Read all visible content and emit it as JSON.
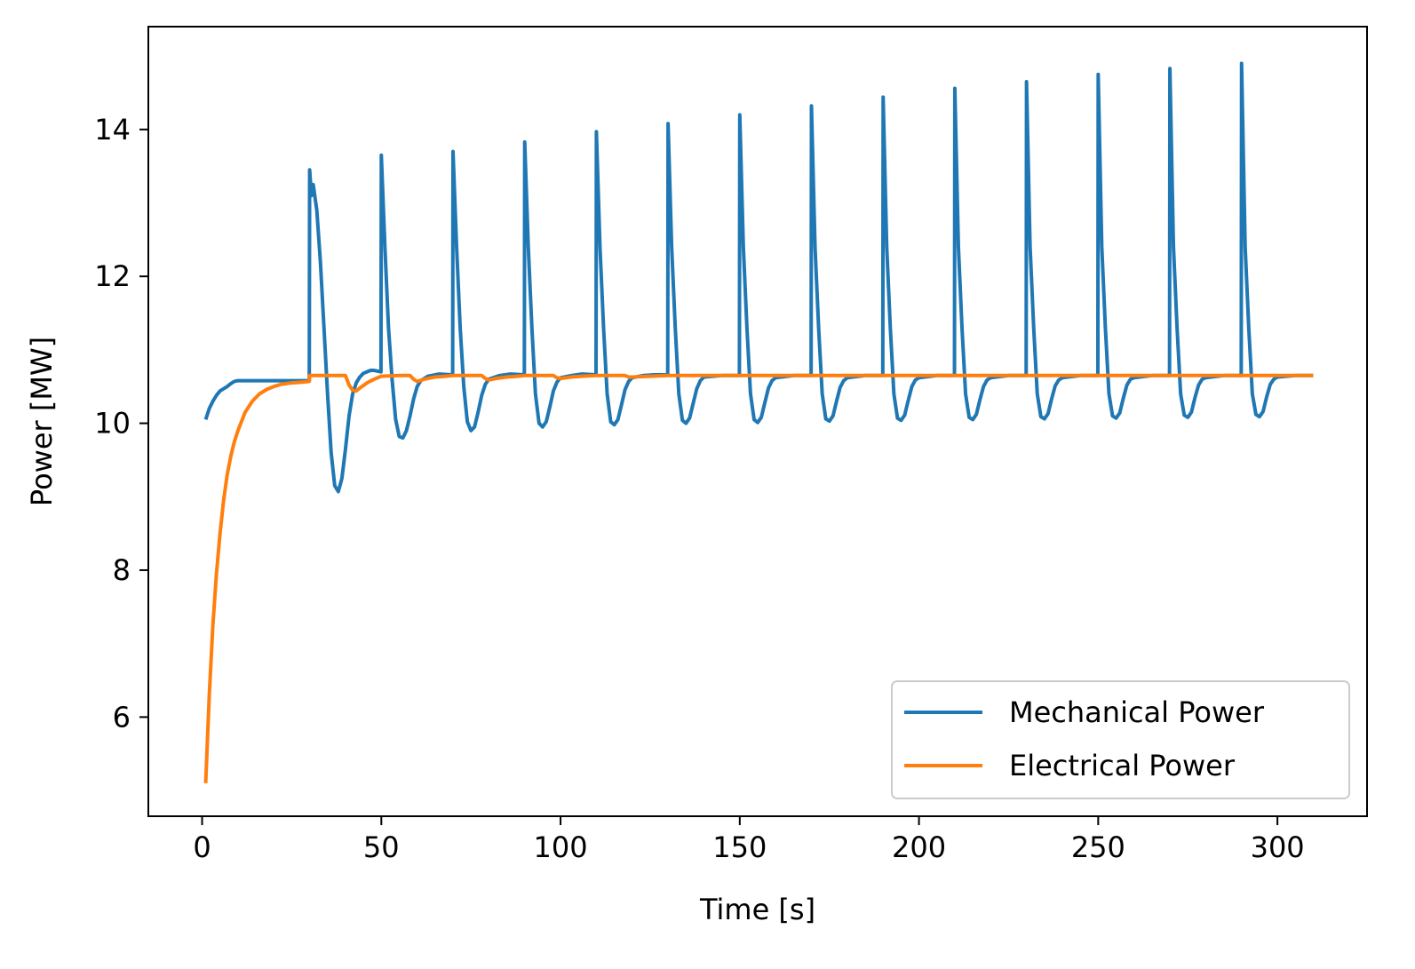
{
  "chart_data": {
    "type": "line",
    "title": "",
    "xlabel": "Time [s]",
    "ylabel": "Power [MW]",
    "xlim": [
      -15,
      325
    ],
    "ylim": [
      4.65,
      15.4
    ],
    "xticks": [
      0,
      50,
      100,
      150,
      200,
      250,
      300
    ],
    "yticks": [
      6,
      8,
      10,
      12,
      14
    ],
    "grid": false,
    "legend_position": "lower right",
    "series": [
      {
        "name": "Mechanical Power",
        "color": "#1f77b4",
        "points": [
          [
            1,
            10.05
          ],
          [
            2,
            10.2
          ],
          [
            3,
            10.3
          ],
          [
            4,
            10.38
          ],
          [
            5,
            10.44
          ],
          [
            6,
            10.47
          ],
          [
            7,
            10.5
          ],
          [
            8,
            10.54
          ],
          [
            9,
            10.57
          ],
          [
            10,
            10.58
          ],
          [
            15,
            10.58
          ],
          [
            20,
            10.58
          ],
          [
            25,
            10.58
          ],
          [
            29.9,
            10.58
          ],
          [
            30,
            13.45
          ],
          [
            30.5,
            13.1
          ],
          [
            31,
            13.25
          ],
          [
            32,
            12.9
          ],
          [
            33,
            12.2
          ],
          [
            34,
            11.3
          ],
          [
            35,
            10.4
          ],
          [
            36,
            9.6
          ],
          [
            37,
            9.15
          ],
          [
            38,
            9.07
          ],
          [
            39,
            9.25
          ],
          [
            40,
            9.65
          ],
          [
            41,
            10.1
          ],
          [
            42,
            10.4
          ],
          [
            43,
            10.55
          ],
          [
            44,
            10.63
          ],
          [
            45,
            10.68
          ],
          [
            47,
            10.72
          ],
          [
            48,
            10.72
          ],
          [
            49.9,
            10.7
          ],
          [
            50,
            13.65
          ],
          [
            51,
            12.4
          ],
          [
            52,
            11.3
          ],
          [
            53,
            10.6
          ],
          [
            54,
            10.05
          ],
          [
            55,
            9.82
          ],
          [
            56,
            9.8
          ],
          [
            57,
            9.9
          ],
          [
            58,
            10.1
          ],
          [
            59,
            10.33
          ],
          [
            60,
            10.5
          ],
          [
            61,
            10.58
          ],
          [
            63,
            10.64
          ],
          [
            66,
            10.67
          ],
          [
            69.9,
            10.66
          ],
          [
            70,
            13.7
          ],
          [
            71,
            12.4
          ],
          [
            72,
            11.3
          ],
          [
            73,
            10.5
          ],
          [
            74,
            10.02
          ],
          [
            75,
            9.9
          ],
          [
            76,
            9.95
          ],
          [
            77,
            10.15
          ],
          [
            78,
            10.38
          ],
          [
            79,
            10.53
          ],
          [
            80,
            10.6
          ],
          [
            83,
            10.65
          ],
          [
            86,
            10.67
          ],
          [
            89.9,
            10.66
          ],
          [
            90,
            13.83
          ],
          [
            91,
            12.4
          ],
          [
            92,
            11.3
          ],
          [
            93,
            10.4
          ],
          [
            94,
            10.0
          ],
          [
            95,
            9.95
          ],
          [
            96,
            10.02
          ],
          [
            97,
            10.22
          ],
          [
            98,
            10.44
          ],
          [
            99,
            10.56
          ],
          [
            100,
            10.62
          ],
          [
            103,
            10.65
          ],
          [
            106,
            10.67
          ],
          [
            109.9,
            10.66
          ],
          [
            110,
            13.97
          ],
          [
            111,
            12.4
          ],
          [
            112,
            11.3
          ],
          [
            113,
            10.4
          ],
          [
            114,
            10.02
          ],
          [
            115,
            9.98
          ],
          [
            116,
            10.05
          ],
          [
            117,
            10.25
          ],
          [
            118,
            10.46
          ],
          [
            119,
            10.57
          ],
          [
            120,
            10.62
          ],
          [
            123,
            10.65
          ],
          [
            126,
            10.66
          ],
          [
            129.9,
            10.66
          ],
          [
            130,
            14.08
          ],
          [
            131,
            12.4
          ],
          [
            132,
            11.3
          ],
          [
            133,
            10.4
          ],
          [
            134,
            10.04
          ],
          [
            135,
            10.0
          ],
          [
            136,
            10.07
          ],
          [
            137,
            10.27
          ],
          [
            138,
            10.47
          ],
          [
            139,
            10.58
          ],
          [
            140,
            10.63
          ],
          [
            145,
            10.65
          ],
          [
            149.9,
            10.65
          ],
          [
            150,
            14.2
          ],
          [
            151,
            12.4
          ],
          [
            152,
            11.3
          ],
          [
            153,
            10.4
          ],
          [
            154,
            10.05
          ],
          [
            155,
            10.01
          ],
          [
            156,
            10.08
          ],
          [
            157,
            10.28
          ],
          [
            158,
            10.48
          ],
          [
            159,
            10.58
          ],
          [
            160,
            10.62
          ],
          [
            165,
            10.65
          ],
          [
            169.9,
            10.65
          ],
          [
            170,
            14.32
          ],
          [
            171,
            12.4
          ],
          [
            172,
            11.3
          ],
          [
            173,
            10.4
          ],
          [
            174,
            10.06
          ],
          [
            175,
            10.03
          ],
          [
            176,
            10.1
          ],
          [
            177,
            10.3
          ],
          [
            178,
            10.49
          ],
          [
            179,
            10.58
          ],
          [
            180,
            10.62
          ],
          [
            185,
            10.65
          ],
          [
            189.9,
            10.65
          ],
          [
            190,
            14.44
          ],
          [
            191,
            12.4
          ],
          [
            192,
            11.3
          ],
          [
            193,
            10.4
          ],
          [
            194,
            10.07
          ],
          [
            195,
            10.04
          ],
          [
            196,
            10.11
          ],
          [
            197,
            10.31
          ],
          [
            198,
            10.5
          ],
          [
            199,
            10.59
          ],
          [
            200,
            10.62
          ],
          [
            205,
            10.65
          ],
          [
            209.9,
            10.65
          ],
          [
            210,
            14.56
          ],
          [
            211,
            12.4
          ],
          [
            212,
            11.3
          ],
          [
            213,
            10.4
          ],
          [
            214,
            10.08
          ],
          [
            215,
            10.05
          ],
          [
            216,
            10.12
          ],
          [
            217,
            10.32
          ],
          [
            218,
            10.5
          ],
          [
            219,
            10.59
          ],
          [
            220,
            10.62
          ],
          [
            225,
            10.65
          ],
          [
            229.9,
            10.65
          ],
          [
            230,
            14.65
          ],
          [
            231,
            12.4
          ],
          [
            232,
            11.3
          ],
          [
            233,
            10.4
          ],
          [
            234,
            10.09
          ],
          [
            235,
            10.06
          ],
          [
            236,
            10.13
          ],
          [
            237,
            10.33
          ],
          [
            238,
            10.51
          ],
          [
            239,
            10.59
          ],
          [
            240,
            10.62
          ],
          [
            245,
            10.65
          ],
          [
            249.9,
            10.65
          ],
          [
            250,
            14.75
          ],
          [
            251,
            12.4
          ],
          [
            252,
            11.3
          ],
          [
            253,
            10.4
          ],
          [
            254,
            10.1
          ],
          [
            255,
            10.07
          ],
          [
            256,
            10.14
          ],
          [
            257,
            10.34
          ],
          [
            258,
            10.52
          ],
          [
            259,
            10.6
          ],
          [
            260,
            10.62
          ],
          [
            265,
            10.65
          ],
          [
            269.9,
            10.65
          ],
          [
            270,
            14.83
          ],
          [
            271,
            12.4
          ],
          [
            272,
            11.3
          ],
          [
            273,
            10.4
          ],
          [
            274,
            10.11
          ],
          [
            275,
            10.08
          ],
          [
            276,
            10.15
          ],
          [
            277,
            10.35
          ],
          [
            278,
            10.52
          ],
          [
            279,
            10.6
          ],
          [
            280,
            10.62
          ],
          [
            285,
            10.65
          ],
          [
            289.9,
            10.65
          ],
          [
            290,
            14.9
          ],
          [
            291,
            12.4
          ],
          [
            292,
            11.3
          ],
          [
            293,
            10.4
          ],
          [
            294,
            10.12
          ],
          [
            295,
            10.09
          ],
          [
            296,
            10.16
          ],
          [
            297,
            10.36
          ],
          [
            298,
            10.53
          ],
          [
            299,
            10.6
          ],
          [
            300,
            10.63
          ],
          [
            305,
            10.65
          ],
          [
            310,
            10.65
          ]
        ]
      },
      {
        "name": "Electrical Power",
        "color": "#ff7f0e",
        "points": [
          [
            1,
            5.1
          ],
          [
            2,
            6.3
          ],
          [
            3,
            7.25
          ],
          [
            4,
            7.95
          ],
          [
            5,
            8.5
          ],
          [
            6,
            8.95
          ],
          [
            7,
            9.3
          ],
          [
            8,
            9.55
          ],
          [
            9,
            9.75
          ],
          [
            10,
            9.9
          ],
          [
            12,
            10.15
          ],
          [
            14,
            10.3
          ],
          [
            16,
            10.4
          ],
          [
            18,
            10.46
          ],
          [
            20,
            10.5
          ],
          [
            22,
            10.53
          ],
          [
            25,
            10.55
          ],
          [
            28,
            10.56
          ],
          [
            29.9,
            10.57
          ],
          [
            30,
            10.65
          ],
          [
            35,
            10.65
          ],
          [
            40,
            10.65
          ],
          [
            41,
            10.52
          ],
          [
            42,
            10.45
          ],
          [
            43,
            10.44
          ],
          [
            44,
            10.48
          ],
          [
            46,
            10.55
          ],
          [
            48,
            10.6
          ],
          [
            50,
            10.64
          ],
          [
            55,
            10.65
          ],
          [
            58,
            10.65
          ],
          [
            59,
            10.6
          ],
          [
            60,
            10.57
          ],
          [
            62,
            10.6
          ],
          [
            65,
            10.63
          ],
          [
            68,
            10.64
          ],
          [
            70,
            10.65
          ],
          [
            78,
            10.65
          ],
          [
            79,
            10.61
          ],
          [
            80,
            10.59
          ],
          [
            82,
            10.61
          ],
          [
            85,
            10.63
          ],
          [
            88,
            10.64
          ],
          [
            90,
            10.65
          ],
          [
            98,
            10.65
          ],
          [
            99,
            10.62
          ],
          [
            100,
            10.61
          ],
          [
            103,
            10.63
          ],
          [
            106,
            10.64
          ],
          [
            110,
            10.65
          ],
          [
            118,
            10.65
          ],
          [
            119,
            10.63
          ],
          [
            120,
            10.63
          ],
          [
            125,
            10.64
          ],
          [
            130,
            10.65
          ],
          [
            310,
            10.65
          ]
        ]
      }
    ]
  }
}
